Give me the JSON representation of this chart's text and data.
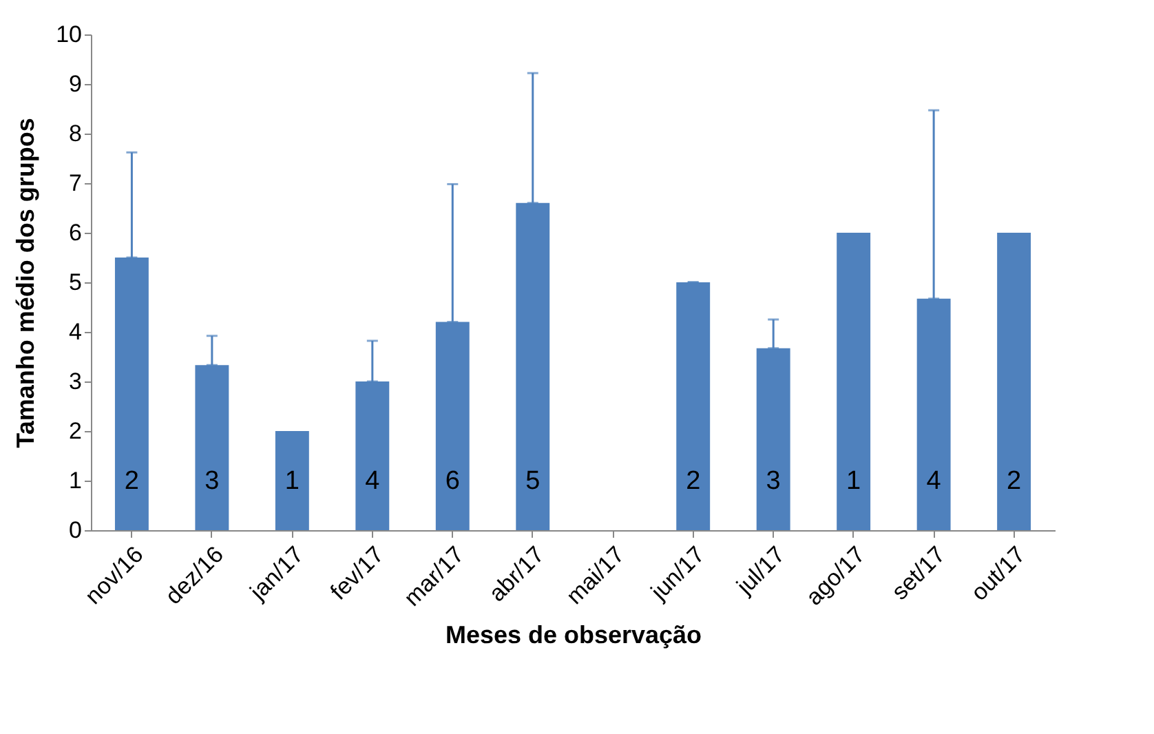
{
  "chart_data": {
    "type": "bar",
    "xlabel": "Meses de observação",
    "ylabel": "Tamanho médio dos grupos",
    "categories": [
      "nov/16",
      "dez/16",
      "jan/17",
      "fev/17",
      "mar/17",
      "abr/17",
      "mai/17",
      "jun/17",
      "jul/17",
      "ago/17",
      "set/17",
      "out/17"
    ],
    "values": [
      5.5,
      3.33,
      2,
      3,
      4.2,
      6.6,
      null,
      5,
      3.67,
      6,
      4.67,
      6
    ],
    "errors": [
      [
        5.5,
        7.62
      ],
      [
        3.33,
        3.92
      ],
      null,
      [
        3,
        3.82
      ],
      [
        4.2,
        6.98
      ],
      [
        6.6,
        9.22
      ],
      null,
      [
        5,
        5
      ],
      [
        3.67,
        4.25
      ],
      null,
      [
        4.67,
        8.47
      ],
      null
    ],
    "color": "#4f81bd",
    "ylim": [
      0,
      10
    ],
    "yticks": [
      0,
      1,
      2,
      3,
      4,
      5,
      6,
      7,
      8,
      9,
      10
    ],
    "grid": false,
    "annotations": [
      "2",
      "3",
      "1",
      "4",
      "6",
      "5",
      "2",
      "3",
      "1",
      "4",
      "2"
    ]
  }
}
